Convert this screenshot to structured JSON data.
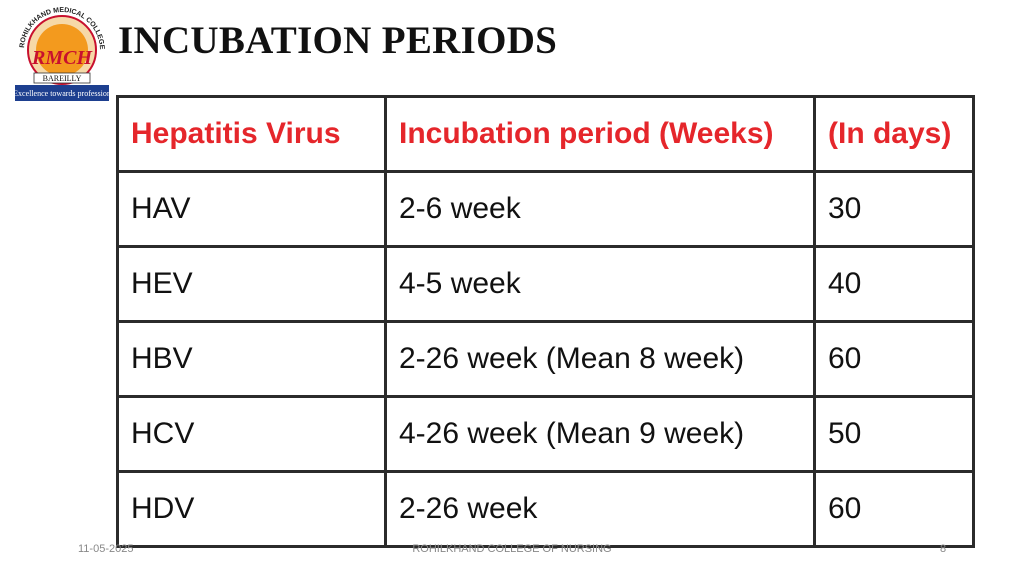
{
  "logo": {
    "ring_text": "ROHILKHAND MEDICAL COLLEGE & HOSPITAL",
    "initials": "RMCH",
    "city": "BAREILLY",
    "motto": "Excellence towards profession"
  },
  "header": {
    "title": "INCUBATION PERIODS"
  },
  "table": {
    "columns": [
      "Hepatitis Virus",
      "Incubation period (Weeks)",
      "(In days)"
    ],
    "rows": [
      [
        "HAV",
        "2-6 week",
        "30"
      ],
      [
        "HEV",
        "4-5 week",
        "40"
      ],
      [
        "HBV",
        "2-26 week (Mean 8 week)",
        "60"
      ],
      [
        "HCV",
        "4-26 week (Mean 9 week)",
        "50"
      ],
      [
        "HDV",
        "2-26 week",
        "60"
      ]
    ]
  },
  "footer": {
    "date": "11-05-2025",
    "center": "ROHILKHAND COLLEGE OF NURSING",
    "page": "8"
  }
}
